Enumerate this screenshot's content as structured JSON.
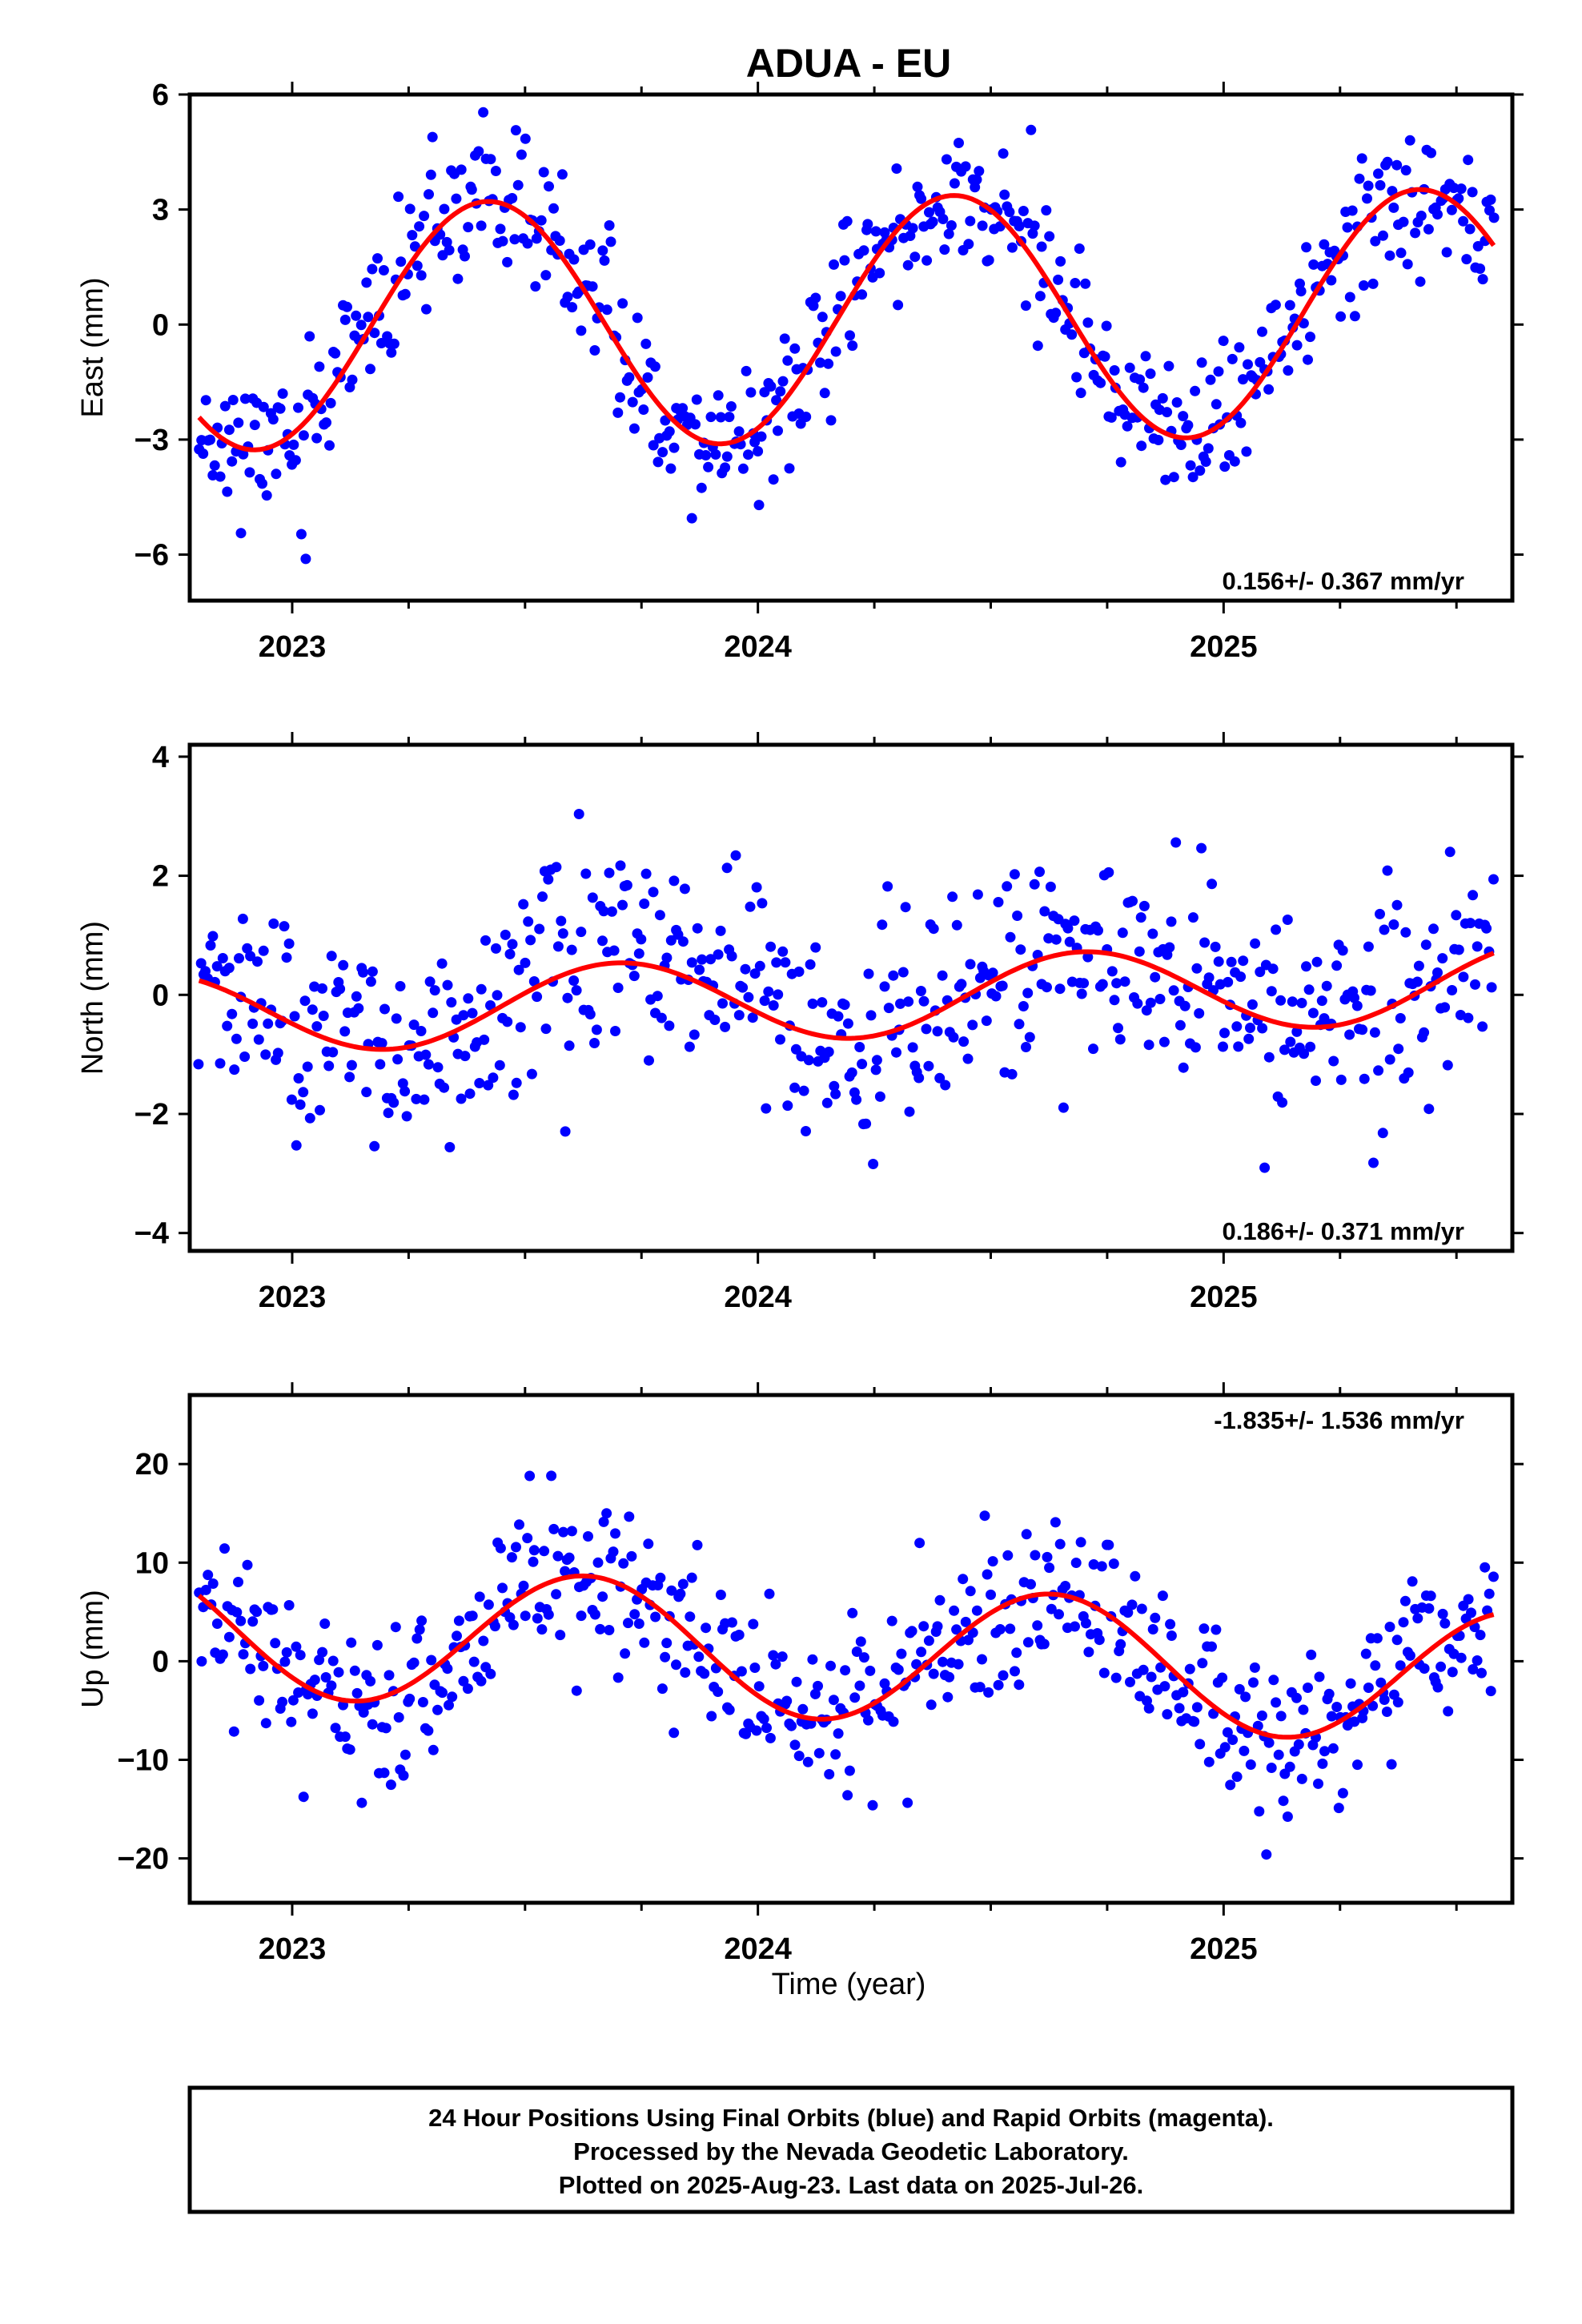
{
  "title": "ADUA - EU",
  "chart_data": [
    {
      "type": "scatter",
      "ylabel": "East (mm)",
      "xlabel": "",
      "ylim": [
        -7.2,
        6.0
      ],
      "xlim": [
        2022.78,
        2025.62
      ],
      "yticks": [
        -6,
        -3,
        0,
        3,
        6
      ],
      "xticks": [
        2023,
        2024,
        2025
      ],
      "rate_text": "0.156+/- 0.367 mm/yr",
      "rate_position": "bottom-right",
      "series_color": "#0000ff",
      "fit_color": "#ff0000",
      "fit": {
        "t0": 2023.61,
        "offset": 0.04,
        "trend": 0.156,
        "amplitude": 3.2,
        "phase_peak": 2023.42,
        "period": 1.0
      },
      "scatter_seed": 11,
      "scatter_spread": 0.95,
      "n_points": 560
    },
    {
      "type": "scatter",
      "ylabel": "North (mm)",
      "xlabel": "",
      "ylim": [
        -4.3,
        4.2
      ],
      "xlim": [
        2022.78,
        2025.62
      ],
      "yticks": [
        -4,
        -2,
        0,
        2,
        4
      ],
      "xticks": [
        2023,
        2024,
        2025
      ],
      "rate_text": "0.186+/- 0.371 mm/yr",
      "rate_position": "bottom-right",
      "series_color": "#0000ff",
      "fit_color": "#ff0000",
      "fit": {
        "t0": 2024.2,
        "offset": -0.05,
        "trend": 0.186,
        "amplitude": 0.68,
        "phase_peak": 2023.7,
        "period": 1.0
      },
      "scatter_seed": 23,
      "scatter_spread": 0.9,
      "n_points": 560
    },
    {
      "type": "scatter",
      "ylabel": "Up (mm)",
      "xlabel": "Time (year)",
      "ylim": [
        -24.5,
        27.0
      ],
      "xlim": [
        2022.78,
        2025.62
      ],
      "yticks": [
        -20,
        -10,
        0,
        10,
        20
      ],
      "xticks": [
        2023,
        2024,
        2025
      ],
      "rate_text": "-1.835+/- 1.536 mm/yr",
      "rate_position": "top-right",
      "series_color": "#0000ff",
      "fit_color": "#ff0000",
      "fit": {
        "t0": 2024.2,
        "offset": 0.8,
        "trend": -1.835,
        "amplitude": 6.8,
        "phase_peak": 2023.63,
        "period": 1.0
      },
      "scatter_seed": 37,
      "scatter_spread": 4.2,
      "n_points": 560
    }
  ],
  "footer": {
    "line1": "24 Hour Positions Using Final Orbits (blue) and Rapid Orbits (magenta).",
    "line2": "Processed by the Nevada Geodetic Laboratory.",
    "line3": "Plotted on 2025-Aug-23. Last data on 2025-Jul-26."
  }
}
